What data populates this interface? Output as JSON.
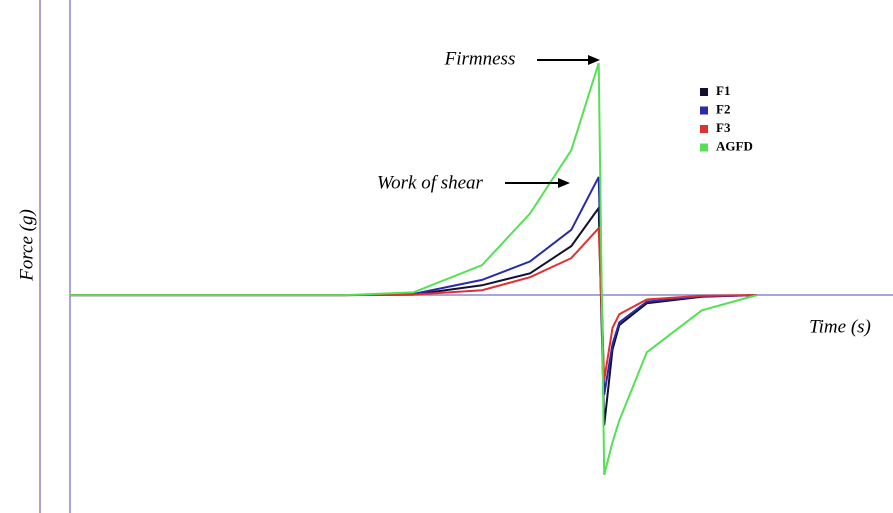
{
  "chart_data": {
    "type": "line",
    "xlabel": "Time (s)",
    "ylabel": "Force (g)",
    "annotations": [
      "Firmness",
      "Work of shear"
    ],
    "xlim": [
      0,
      6
    ],
    "ylim": [
      -4,
      5.4
    ],
    "x": [
      0,
      1,
      2,
      2.5,
      3,
      3.35,
      3.65,
      3.85,
      3.89,
      3.95,
      4.0,
      4.2,
      4.6,
      5.0
    ],
    "series": [
      {
        "name": "F1",
        "color": "#111133",
        "values": [
          0,
          0,
          0,
          0.01,
          0.18,
          0.4,
          0.9,
          1.6,
          -2.39,
          -1.0,
          -0.55,
          -0.15,
          -0.03,
          0
        ]
      },
      {
        "name": "F2",
        "color": "#2a2aa8",
        "values": [
          0,
          0,
          0,
          0.02,
          0.28,
          0.62,
          1.2,
          2.17,
          -1.83,
          -0.9,
          -0.5,
          -0.12,
          -0.02,
          0
        ]
      },
      {
        "name": "F3",
        "color": "#e03030",
        "values": [
          0,
          0,
          0,
          0.01,
          0.09,
          0.33,
          0.68,
          1.23,
          -1.56,
          -0.6,
          -0.35,
          -0.08,
          -0.01,
          0
        ]
      },
      {
        "name": "AGFD",
        "color": "#55e055",
        "values": [
          0,
          0,
          0,
          0.05,
          0.55,
          1.5,
          2.66,
          4.26,
          -3.3,
          -2.7,
          -2.3,
          -1.05,
          -0.28,
          0
        ]
      }
    ]
  }
}
